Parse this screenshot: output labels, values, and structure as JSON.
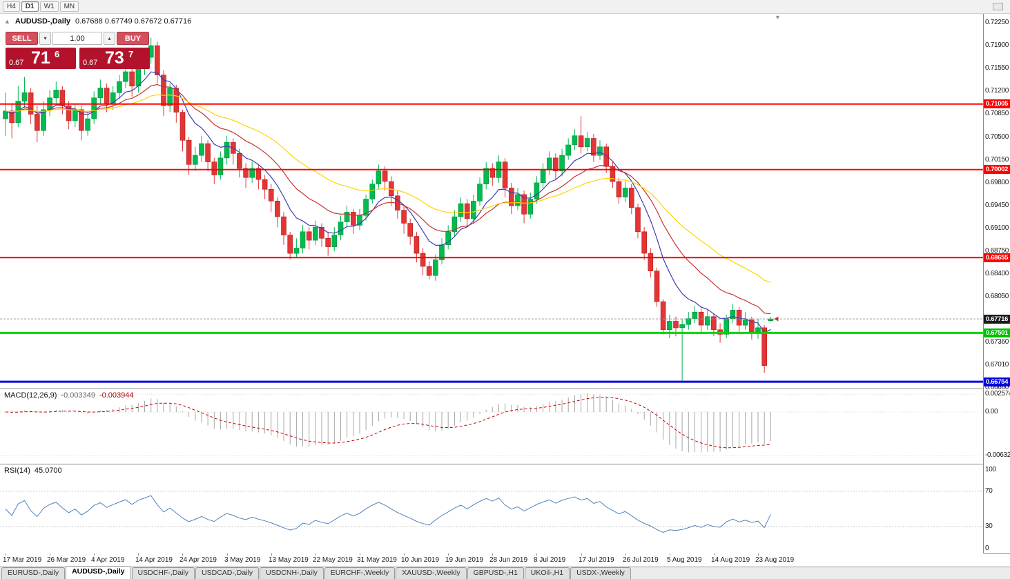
{
  "toolbar": {
    "timeframes": [
      "H4",
      "D1",
      "W1",
      "MN"
    ],
    "active_timeframe": "D1"
  },
  "chart_header": {
    "symbol_label": "AUDUSD-,Daily",
    "ohlc": "0.67688 0.67749 0.67672 0.67716"
  },
  "trade_panel": {
    "sell_label": "SELL",
    "buy_label": "BUY",
    "volume": "1.00",
    "sell_price": {
      "prefix": "0.67",
      "big": "71",
      "sup": "6"
    },
    "buy_price": {
      "prefix": "0.67",
      "big": "73",
      "sup": "7"
    },
    "button_color": "#d4505c",
    "price_box_color": "#b3122d"
  },
  "price_scale": {
    "ticks": [
      {
        "label": "0.72250",
        "price": 0.7225
      },
      {
        "label": "0.71900",
        "price": 0.719
      },
      {
        "label": "0.71550",
        "price": 0.7155
      },
      {
        "label": "0.71200",
        "price": 0.712
      },
      {
        "label": "0.70850",
        "price": 0.7085
      },
      {
        "label": "0.70500",
        "price": 0.705
      },
      {
        "label": "0.70150",
        "price": 0.7015
      },
      {
        "label": "0.69800",
        "price": 0.698
      },
      {
        "label": "0.69450",
        "price": 0.6945
      },
      {
        "label": "0.69100",
        "price": 0.691
      },
      {
        "label": "0.68750",
        "price": 0.6875
      },
      {
        "label": "0.68400",
        "price": 0.684
      },
      {
        "label": "0.68050",
        "price": 0.6805
      },
      {
        "label": "0.67700",
        "price": 0.677
      },
      {
        "label": "0.67360",
        "price": 0.6736
      },
      {
        "label": "0.67010",
        "price": 0.6701
      },
      {
        "label": "0.66660",
        "price": 0.6666
      }
    ],
    "tags": [
      {
        "label": "0.71005",
        "price": 0.71005,
        "bg": "#ff0000"
      },
      {
        "label": "0.70002",
        "price": 0.70002,
        "bg": "#ff0000"
      },
      {
        "label": "0.68655",
        "price": 0.68655,
        "bg": "#ff0000"
      },
      {
        "label": "0.67716",
        "price": 0.67716,
        "bg": "#1a1a1a"
      },
      {
        "label": "0.67501",
        "price": 0.67501,
        "bg": "#00c000"
      },
      {
        "label": "0.66754",
        "price": 0.66754,
        "bg": "#0000e0"
      }
    ]
  },
  "indicators": {
    "macd": {
      "name": "MACD(12,26,9)",
      "value_main": "-0.003349",
      "value_signal": "-0.003944",
      "fast": 12,
      "slow": 26,
      "signal": 9,
      "scale": [
        {
          "label": "0.002574",
          "value": 0.002574
        },
        {
          "label": "0.00",
          "value": 0
        },
        {
          "label": "-0.006326",
          "value": -0.006326
        }
      ]
    },
    "rsi": {
      "name": "RSI(14)",
      "value": "45.0700",
      "period": 14,
      "line_color": "#4f81bd",
      "levels": [
        {
          "label": "100",
          "value": 100
        },
        {
          "label": "70",
          "value": 70
        },
        {
          "label": "30",
          "value": 30
        },
        {
          "label": "0",
          "value": 0
        }
      ]
    }
  },
  "x_axis": {
    "label_every": 7,
    "labels": [
      "17 Mar 2019",
      "26 Mar 2019",
      "4 Apr 2019",
      "14 Apr 2019",
      "24 Apr 2019",
      "3 May 2019",
      "13 May 2019",
      "22 May 2019",
      "31 May 2019",
      "10 Jun 2019",
      "19 Jun 2019",
      "28 Jun 2019",
      "8 Jul 2019",
      "17 Jul 2019",
      "26 Jul 2019",
      "5 Aug 2019",
      "14 Aug 2019",
      "23 Aug 2019"
    ]
  },
  "tabs": [
    {
      "label": "EURUSD-,Daily",
      "active": false
    },
    {
      "label": "AUDUSD-,Daily",
      "active": true
    },
    {
      "label": "USDCHF-,Daily",
      "active": false
    },
    {
      "label": "USDCAD-,Daily",
      "active": false
    },
    {
      "label": "USDCNH-,Daily",
      "active": false
    },
    {
      "label": "EURCHF-,Weekly",
      "active": false
    },
    {
      "label": "XAUUSD-,Weekly",
      "active": false
    },
    {
      "label": "GBPUSD-,H1",
      "active": false
    },
    {
      "label": "UKOil-,H1",
      "active": false
    },
    {
      "label": "USDX-,Weekly",
      "active": false
    }
  ],
  "chart_data": {
    "type": "candlestick",
    "symbol": "AUDUSD",
    "timeframe": "Daily",
    "title": "AUDUSD-,Daily",
    "ylim": [
      0.6666,
      0.7225
    ],
    "current_price": 0.67716,
    "colors": {
      "up": "#00bb4f",
      "down": "#e23535",
      "up_border": "#008a3c",
      "down_border": "#b01f1f",
      "macd_hist": "#a6a6a6",
      "macd_signal": "#cc0000",
      "current_price_line": "#9a9a9a",
      "background": "#ffffff"
    },
    "moving_averages": [
      {
        "period": 8,
        "type": "ema",
        "color": "#3c3cb4"
      },
      {
        "period": 17,
        "type": "ema",
        "color": "#c83232"
      },
      {
        "period": 34,
        "type": "ema",
        "color": "#ffd400"
      }
    ],
    "hlines": [
      {
        "price": 0.71005,
        "color": "#ff0000",
        "width": 2
      },
      {
        "price": 0.70002,
        "color": "#ff0000",
        "width": 2
      },
      {
        "price": 0.68655,
        "color": "#ff0000",
        "width": 2
      },
      {
        "price": 0.67501,
        "color": "#00d400",
        "width": 3
      },
      {
        "price": 0.66754,
        "color": "#0000e0",
        "width": 3
      }
    ],
    "candles": [
      [
        0.7078,
        0.7118,
        0.7052,
        0.709
      ],
      [
        0.709,
        0.7102,
        0.7048,
        0.7072
      ],
      [
        0.7072,
        0.7128,
        0.7065,
        0.7105
      ],
      [
        0.7105,
        0.7142,
        0.7095,
        0.7118
      ],
      [
        0.7118,
        0.7125,
        0.707,
        0.7085
      ],
      [
        0.7085,
        0.7098,
        0.7042,
        0.706
      ],
      [
        0.706,
        0.7105,
        0.7052,
        0.7092
      ],
      [
        0.7092,
        0.7122,
        0.7082,
        0.711
      ],
      [
        0.711,
        0.7135,
        0.7098,
        0.7122
      ],
      [
        0.7122,
        0.7128,
        0.7085,
        0.7098
      ],
      [
        0.7098,
        0.7105,
        0.7062,
        0.7075
      ],
      [
        0.7075,
        0.7102,
        0.7065,
        0.7092
      ],
      [
        0.7092,
        0.7098,
        0.7045,
        0.706
      ],
      [
        0.706,
        0.709,
        0.7052,
        0.7078
      ],
      [
        0.7078,
        0.712,
        0.707,
        0.711
      ],
      [
        0.711,
        0.7138,
        0.71,
        0.7125
      ],
      [
        0.7125,
        0.7132,
        0.7088,
        0.7102
      ],
      [
        0.7102,
        0.7128,
        0.7092,
        0.7118
      ],
      [
        0.7118,
        0.7145,
        0.7108,
        0.7135
      ],
      [
        0.7135,
        0.7162,
        0.7125,
        0.715
      ],
      [
        0.715,
        0.7158,
        0.7112,
        0.7128
      ],
      [
        0.7128,
        0.7165,
        0.7118,
        0.7155
      ],
      [
        0.7155,
        0.7182,
        0.7145,
        0.7172
      ],
      [
        0.7172,
        0.7202,
        0.7162,
        0.719
      ],
      [
        0.719,
        0.7196,
        0.7132,
        0.7145
      ],
      [
        0.7145,
        0.7152,
        0.7082,
        0.7098
      ],
      [
        0.7098,
        0.7132,
        0.7088,
        0.7125
      ],
      [
        0.7125,
        0.713,
        0.7072,
        0.7088
      ],
      [
        0.7088,
        0.7092,
        0.7028,
        0.7045
      ],
      [
        0.7045,
        0.705,
        0.6992,
        0.7008
      ],
      [
        0.7008,
        0.7035,
        0.6998,
        0.7022
      ],
      [
        0.7022,
        0.7052,
        0.7012,
        0.704
      ],
      [
        0.704,
        0.7045,
        0.6998,
        0.7012
      ],
      [
        0.7012,
        0.7018,
        0.6978,
        0.6992
      ],
      [
        0.6992,
        0.7028,
        0.6985,
        0.7018
      ],
      [
        0.7018,
        0.7052,
        0.7008,
        0.7042
      ],
      [
        0.7042,
        0.7048,
        0.7008,
        0.7025
      ],
      [
        0.7025,
        0.7032,
        0.6988,
        0.7002
      ],
      [
        0.7002,
        0.701,
        0.6972,
        0.6988
      ],
      [
        0.6988,
        0.7012,
        0.698,
        0.7002
      ],
      [
        0.7002,
        0.7008,
        0.697,
        0.6985
      ],
      [
        0.6985,
        0.6992,
        0.6955,
        0.697
      ],
      [
        0.697,
        0.6978,
        0.6935,
        0.6952
      ],
      [
        0.6952,
        0.6958,
        0.6912,
        0.6928
      ],
      [
        0.6928,
        0.6935,
        0.6885,
        0.69
      ],
      [
        0.69,
        0.6905,
        0.6863,
        0.6872
      ],
      [
        0.6872,
        0.6895,
        0.6865,
        0.688
      ],
      [
        0.688,
        0.6915,
        0.6872,
        0.6905
      ],
      [
        0.6905,
        0.6912,
        0.6878,
        0.6892
      ],
      [
        0.6892,
        0.6922,
        0.6885,
        0.6912
      ],
      [
        0.6912,
        0.6918,
        0.6882,
        0.6895
      ],
      [
        0.6895,
        0.6905,
        0.6868,
        0.6882
      ],
      [
        0.6882,
        0.6912,
        0.6875,
        0.69
      ],
      [
        0.69,
        0.693,
        0.6892,
        0.692
      ],
      [
        0.692,
        0.6945,
        0.6912,
        0.6935
      ],
      [
        0.6935,
        0.694,
        0.6902,
        0.6915
      ],
      [
        0.6915,
        0.694,
        0.6908,
        0.693
      ],
      [
        0.693,
        0.6962,
        0.6922,
        0.6955
      ],
      [
        0.6955,
        0.6985,
        0.6948,
        0.6978
      ],
      [
        0.6978,
        0.7008,
        0.697,
        0.6998
      ],
      [
        0.6998,
        0.7005,
        0.6968,
        0.6982
      ],
      [
        0.6982,
        0.699,
        0.6945,
        0.696
      ],
      [
        0.696,
        0.6968,
        0.6925,
        0.6938
      ],
      [
        0.6938,
        0.6945,
        0.6902,
        0.6918
      ],
      [
        0.6918,
        0.6925,
        0.6885,
        0.6898
      ],
      [
        0.6898,
        0.6905,
        0.6858,
        0.6872
      ],
      [
        0.6872,
        0.688,
        0.6838,
        0.6852
      ],
      [
        0.6852,
        0.686,
        0.6832,
        0.6838
      ],
      [
        0.6838,
        0.687,
        0.683,
        0.6862
      ],
      [
        0.6862,
        0.6895,
        0.6855,
        0.6885
      ],
      [
        0.6885,
        0.6915,
        0.6878,
        0.6905
      ],
      [
        0.6905,
        0.6938,
        0.6898,
        0.6928
      ],
      [
        0.6928,
        0.6958,
        0.692,
        0.6948
      ],
      [
        0.6948,
        0.6955,
        0.6912,
        0.6925
      ],
      [
        0.6925,
        0.6962,
        0.6918,
        0.6952
      ],
      [
        0.6952,
        0.6988,
        0.6945,
        0.6978
      ],
      [
        0.6978,
        0.7012,
        0.697,
        0.7002
      ],
      [
        0.7002,
        0.701,
        0.6975,
        0.6988
      ],
      [
        0.6988,
        0.7022,
        0.698,
        0.7012
      ],
      [
        0.7012,
        0.7018,
        0.6958,
        0.6972
      ],
      [
        0.6972,
        0.698,
        0.6932,
        0.6945
      ],
      [
        0.6945,
        0.6972,
        0.6938,
        0.6962
      ],
      [
        0.6962,
        0.6968,
        0.6918,
        0.6932
      ],
      [
        0.6932,
        0.6965,
        0.6925,
        0.6955
      ],
      [
        0.6955,
        0.699,
        0.6948,
        0.698
      ],
      [
        0.698,
        0.701,
        0.6972,
        0.7
      ],
      [
        0.7,
        0.7028,
        0.6992,
        0.7018
      ],
      [
        0.7018,
        0.7025,
        0.6985,
        0.6998
      ],
      [
        0.6998,
        0.7032,
        0.699,
        0.7022
      ],
      [
        0.7022,
        0.7048,
        0.7015,
        0.7038
      ],
      [
        0.7038,
        0.7062,
        0.703,
        0.7052
      ],
      [
        0.7052,
        0.7082,
        0.7025,
        0.7035
      ],
      [
        0.7035,
        0.7058,
        0.7028,
        0.7048
      ],
      [
        0.7048,
        0.7055,
        0.7012,
        0.7022
      ],
      [
        0.7022,
        0.7045,
        0.7015,
        0.7035
      ],
      [
        0.7035,
        0.704,
        0.6995,
        0.7005
      ],
      [
        0.7005,
        0.7012,
        0.6972,
        0.6982
      ],
      [
        0.6982,
        0.6988,
        0.6948,
        0.6958
      ],
      [
        0.6958,
        0.6982,
        0.695,
        0.6972
      ],
      [
        0.6972,
        0.6978,
        0.6932,
        0.6942
      ],
      [
        0.6942,
        0.6948,
        0.6895,
        0.6905
      ],
      [
        0.6905,
        0.6912,
        0.6862,
        0.6872
      ],
      [
        0.6872,
        0.688,
        0.6835,
        0.6845
      ],
      [
        0.6845,
        0.685,
        0.679,
        0.6798
      ],
      [
        0.6798,
        0.6802,
        0.6748,
        0.6755
      ],
      [
        0.6755,
        0.6778,
        0.6742,
        0.6768
      ],
      [
        0.6768,
        0.6775,
        0.6745,
        0.6758
      ],
      [
        0.6758,
        0.6772,
        0.6677,
        0.6763
      ],
      [
        0.6763,
        0.6782,
        0.6755,
        0.6772
      ],
      [
        0.6772,
        0.6792,
        0.6765,
        0.6782
      ],
      [
        0.6782,
        0.6788,
        0.6752,
        0.6762
      ],
      [
        0.6762,
        0.6785,
        0.6755,
        0.6775
      ],
      [
        0.6775,
        0.678,
        0.6745,
        0.6755
      ],
      [
        0.6755,
        0.6765,
        0.6735,
        0.6748
      ],
      [
        0.6748,
        0.6778,
        0.6742,
        0.6772
      ],
      [
        0.6772,
        0.6795,
        0.6765,
        0.6785
      ],
      [
        0.6785,
        0.679,
        0.6752,
        0.6762
      ],
      [
        0.6762,
        0.6782,
        0.6755,
        0.677
      ],
      [
        0.677,
        0.6775,
        0.674,
        0.6752
      ],
      [
        0.6752,
        0.6772,
        0.6741,
        0.6758
      ],
      [
        0.6758,
        0.6762,
        0.6689,
        0.67
      ],
      [
        0.67688,
        0.67749,
        0.67672,
        0.67716
      ]
    ]
  }
}
